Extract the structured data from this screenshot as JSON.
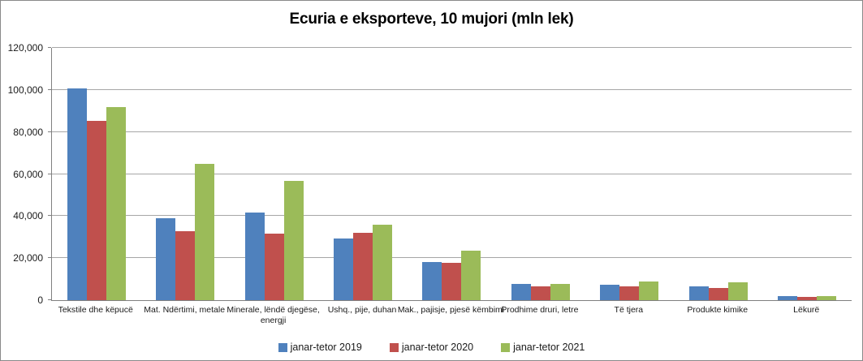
{
  "title": "Ecuria e eksporteve, 10 mujori (mln lek)",
  "colors": {
    "series_2019": "#4F81BD",
    "series_2020": "#C0504D",
    "series_2021": "#9BBB59",
    "gridline": "#a6a6a6",
    "axis_line": "#808080",
    "border": "#898989",
    "background": "#ffffff",
    "text": "#000000"
  },
  "chart_data": {
    "type": "bar",
    "title": "Ecuria e eksporteve, 10 mujori (mln lek)",
    "xlabel": "",
    "ylabel": "",
    "ylim": [
      0,
      120000
    ],
    "grid": true,
    "legend_position": "bottom",
    "yticks": [
      {
        "value": 0,
        "label": "0"
      },
      {
        "value": 20000,
        "label": "20,000"
      },
      {
        "value": 40000,
        "label": "40,000"
      },
      {
        "value": 60000,
        "label": "60,000"
      },
      {
        "value": 80000,
        "label": "80,000"
      },
      {
        "value": 100000,
        "label": "100,000"
      },
      {
        "value": 120000,
        "label": "120,000"
      }
    ],
    "categories": [
      "Tekstile dhe këpucë",
      "Mat. Ndërtimi, metale",
      "Minerale, lëndë djegëse, energji",
      "Ushq., pije, duhan",
      "Mak., pajisje, pjesë këmbimi",
      "Prodhime druri, letre",
      "Të tjera",
      "Produkte kimike",
      "Lëkurë"
    ],
    "series": [
      {
        "name": "janar-tetor 2019",
        "color": "#4F81BD",
        "values": [
          100700,
          39000,
          41500,
          29200,
          18100,
          7700,
          7300,
          6600,
          2000
        ]
      },
      {
        "name": "janar-tetor 2020",
        "color": "#C0504D",
        "values": [
          85300,
          32700,
          31800,
          32200,
          17600,
          6700,
          6600,
          5900,
          1500
        ]
      },
      {
        "name": "janar-tetor 2021",
        "color": "#9BBB59",
        "values": [
          91900,
          64800,
          56900,
          36000,
          23500,
          7700,
          8700,
          8600,
          2100
        ]
      }
    ]
  }
}
